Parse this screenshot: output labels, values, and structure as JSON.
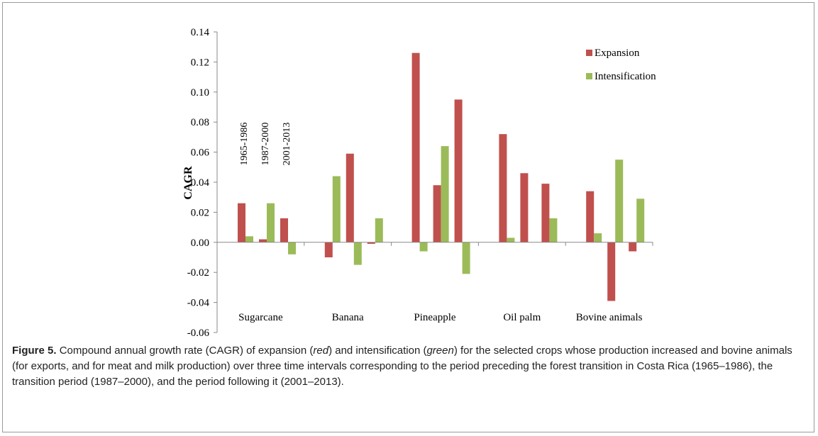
{
  "chart_data": {
    "type": "bar",
    "categories": [
      "Sugarcane",
      "Banana",
      "Pineapple",
      "Oil palm",
      "Bovine animals"
    ],
    "periods": [
      "1965-1986",
      "1987-2000",
      "2001-2013"
    ],
    "ylabel": "CAGR",
    "series": [
      {
        "name": "Expansion",
        "color": "#c0504d",
        "values": [
          [
            0.026,
            0.002,
            0.016
          ],
          [
            -0.01,
            0.059,
            -0.001
          ],
          [
            0.126,
            0.038,
            0.095
          ],
          [
            0.072,
            0.046,
            0.039
          ],
          [
            0.034,
            -0.039,
            -0.006
          ]
        ]
      },
      {
        "name": "Intensification",
        "color": "#9bbb59",
        "values": [
          [
            0.004,
            0.026,
            -0.008
          ],
          [
            0.044,
            -0.015,
            0.016
          ],
          [
            -0.006,
            0.064,
            -0.021
          ],
          [
            0.003,
            0,
            0.016
          ],
          [
            0.006,
            0.055,
            0.029
          ]
        ]
      }
    ],
    "ylim": [
      -0.06,
      0.14
    ],
    "yticks": [
      -0.06,
      -0.04,
      -0.02,
      {
        "value": 0,
        "label": "0.00"
      },
      0.02,
      0.04,
      0.06,
      0.08,
      {
        "value": 0.1,
        "label": "0.10"
      },
      0.12,
      0.14
    ],
    "legend": "top-right"
  },
  "caption": {
    "label": "Figure 5.",
    "parts": [
      "Compound annual growth rate (CAGR) of expansion (",
      "red",
      ") and intensification (",
      "green",
      ") for the selected crops whose production increased and bovine animals (for exports, and for meat and milk production) over three time intervals corresponding to the period preceding the forest transition in Costa Rica (1965–1986), the transition period (1987–2000), and the period following it (2001–2013)."
    ]
  }
}
